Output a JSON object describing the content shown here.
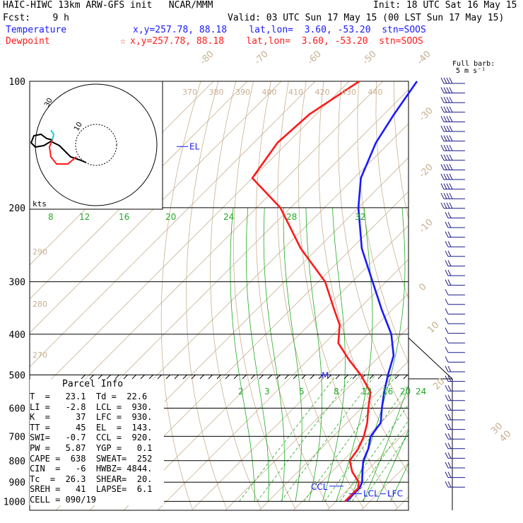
{
  "header": {
    "line1_left": "HAIC-HIWC 13km ARW-GFS init   NCAR/MMM",
    "line1_right": "Init: 18 UTC Sat 16 May 15",
    "line2_left": "Fcst:    9 h",
    "line2_right": "Valid: 03 UTC Sun 17 May 15 (00 LST Sun 17 May 15)",
    "temperature_label": "Temperature",
    "temperature_info": "x,y=257.78, 88.18    lat,lon=  3.60, -53.20  stn=SOOS",
    "dewpoint_label": "Dewpoint",
    "dewpoint_info": "x,y=257.78, 88.18    lat,lon=  3.60, -53.20  stn=SOOS",
    "dewpoint_marker": "☆"
  },
  "colors": {
    "temperature": "#1a1aff",
    "dewpoint": "#ff1a1a",
    "isotherm": "#c8b090",
    "mixing_ratio": "#22aa22",
    "wind_barb": "#1a1a88"
  },
  "barb_legend": {
    "line1": "Full barb:",
    "line2": "5 m s⁻¹"
  },
  "chart_data": {
    "type": "skew-t",
    "pressure_levels": [
      "100",
      "200",
      "300",
      "400",
      "500",
      "600",
      "700",
      "800",
      "900",
      "1000"
    ],
    "isotherm_labels": [
      "-80",
      "-70",
      "-60",
      "-50",
      "-40",
      "-30",
      "-20",
      "-10",
      "0",
      "10",
      "20",
      "30",
      "40"
    ],
    "theta_labels": [
      "370",
      "380",
      "390",
      "400",
      "410",
      "420",
      "430",
      "440"
    ],
    "theta_labels_left": [
      "290",
      "280",
      "270"
    ],
    "mixing_ratio_labels_upper": [
      "8",
      "12",
      "16",
      "20",
      "24",
      "28",
      "32"
    ],
    "mixing_ratio_labels_lower": [
      "2",
      "3",
      "5",
      "8",
      "12",
      "16",
      "20",
      "24"
    ],
    "temperature_profile": [
      {
        "p": 100,
        "t": -80
      },
      {
        "p": 120,
        "t": -77
      },
      {
        "p": 140,
        "t": -74
      },
      {
        "p": 170,
        "t": -68
      },
      {
        "p": 200,
        "t": -60
      },
      {
        "p": 250,
        "t": -47
      },
      {
        "p": 300,
        "t": -34
      },
      {
        "p": 350,
        "t": -23
      },
      {
        "p": 400,
        "t": -13
      },
      {
        "p": 450,
        "t": -6
      },
      {
        "p": 500,
        "t": -2
      },
      {
        "p": 550,
        "t": 2
      },
      {
        "p": 600,
        "t": 6
      },
      {
        "p": 650,
        "t": 10
      },
      {
        "p": 700,
        "t": 11
      },
      {
        "p": 750,
        "t": 14
      },
      {
        "p": 800,
        "t": 16
      },
      {
        "p": 850,
        "t": 19
      },
      {
        "p": 900,
        "t": 22
      },
      {
        "p": 930,
        "t": 23
      },
      {
        "p": 960,
        "t": 23
      },
      {
        "p": 1000,
        "t": 23.1
      }
    ],
    "dewpoint_profile": [
      {
        "p": 100,
        "t": -97
      },
      {
        "p": 120,
        "t": -102
      },
      {
        "p": 140,
        "t": -103
      },
      {
        "p": 170,
        "t": -100
      },
      {
        "p": 200,
        "t": -83
      },
      {
        "p": 250,
        "t": -65
      },
      {
        "p": 300,
        "t": -48
      },
      {
        "p": 350,
        "t": -37
      },
      {
        "p": 380,
        "t": -31
      },
      {
        "p": 420,
        "t": -26
      },
      {
        "p": 460,
        "t": -18
      },
      {
        "p": 500,
        "t": -10
      },
      {
        "p": 550,
        "t": -2
      },
      {
        "p": 600,
        "t": 2
      },
      {
        "p": 650,
        "t": 6
      },
      {
        "p": 700,
        "t": 9
      },
      {
        "p": 750,
        "t": 11
      },
      {
        "p": 800,
        "t": 12
      },
      {
        "p": 850,
        "t": 16
      },
      {
        "p": 900,
        "t": 21
      },
      {
        "p": 930,
        "t": 22.6
      },
      {
        "p": 960,
        "t": 22.6
      },
      {
        "p": 1000,
        "t": 22.6
      }
    ],
    "annotations": {
      "el": {
        "label": "EL",
        "p": 143
      },
      "m": {
        "label": "M",
        "p": 500
      },
      "ccl": {
        "label": "CCL",
        "p": 920
      },
      "lcl": {
        "label": "LCL",
        "p": 930
      },
      "lfc": {
        "label": "LFC",
        "p": 930
      }
    },
    "hodograph": {
      "units_label": "kts",
      "ring_labels": [
        "30",
        "10"
      ]
    },
    "parcel_info": {
      "title": "Parcel Info",
      "rows": [
        "T  =   23.1  Td =  22.6",
        "LI =   -2.8  LCL =  930.",
        "K  =     37  LFC =  930.",
        "TT =     45  EL  =  143.",
        "SWI=   -0.7  CCL =  920.",
        "PW =   5.87  YGP =   0.1",
        "CAPE =  638  SWEAT=  252",
        "CIN  =   -6  HWBZ= 4844.",
        "Tc  =  26.3  SHEAR=  20.",
        "SREH =   41  LAPSE=  6.1",
        "CELL = 090/19"
      ]
    }
  }
}
